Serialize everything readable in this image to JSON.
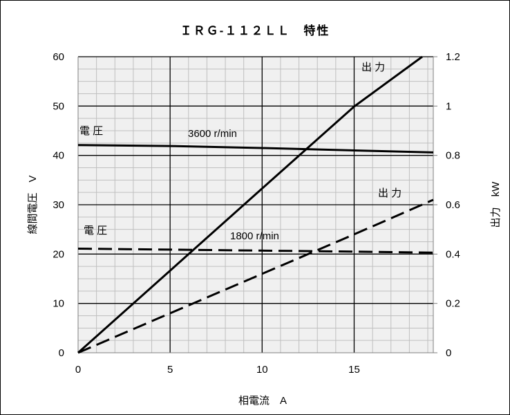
{
  "chart_data": {
    "type": "line",
    "title": "ＩＲＧ-１１２ＬＬ　特性",
    "xlabel": "相電流　A",
    "ylabel_left": "線間電圧　V",
    "ylabel_right": "出力　kW",
    "xlim": [
      0,
      19.3
    ],
    "ylim_left": [
      0,
      60
    ],
    "ylim_right": [
      0,
      1.2
    ],
    "x_ticks": [
      "0",
      "5",
      "10",
      "15"
    ],
    "y_ticks_left": [
      "0",
      "10",
      "20",
      "30",
      "40",
      "50",
      "60"
    ],
    "y_ticks_right": [
      "0",
      "0.2",
      "0.4",
      "0.6",
      "0.8",
      "1",
      "1.2"
    ],
    "grid": "major and minor",
    "series": [
      {
        "name": "",
        "axis": "left",
        "style": "solid",
        "group": "3600 r/min",
        "quantity": "電圧",
        "x": [
          0,
          5,
          10,
          15,
          19.3
        ],
        "y": [
          42.1,
          41.9,
          41.5,
          41.0,
          40.6
        ]
      },
      {
        "name": "",
        "axis": "right",
        "style": "solid",
        "group": "3600 r/min",
        "quantity": "出力",
        "x": [
          0,
          5,
          10,
          15,
          18.7
        ],
        "y": [
          0,
          0.333,
          0.666,
          0.998,
          1.2
        ]
      },
      {
        "name": "",
        "axis": "left",
        "style": "dashed",
        "group": "1800 r/min",
        "quantity": "電圧",
        "x": [
          0,
          5,
          10,
          15,
          19.3
        ],
        "y": [
          21.1,
          20.9,
          20.7,
          20.5,
          20.3
        ]
      },
      {
        "name": "",
        "axis": "right",
        "style": "dashed",
        "group": "1800 r/min",
        "quantity": "出力",
        "x": [
          0,
          5,
          10,
          15,
          19.3
        ],
        "y": [
          0,
          0.16,
          0.32,
          0.48,
          0.62
        ]
      }
    ],
    "annotations": {
      "voltage_3600": "電 圧",
      "speed_3600": "3600 r/min",
      "power_3600": "出 力",
      "voltage_1800": "電 圧",
      "speed_1800": "1800 r/min",
      "power_1800": "出 力"
    }
  }
}
